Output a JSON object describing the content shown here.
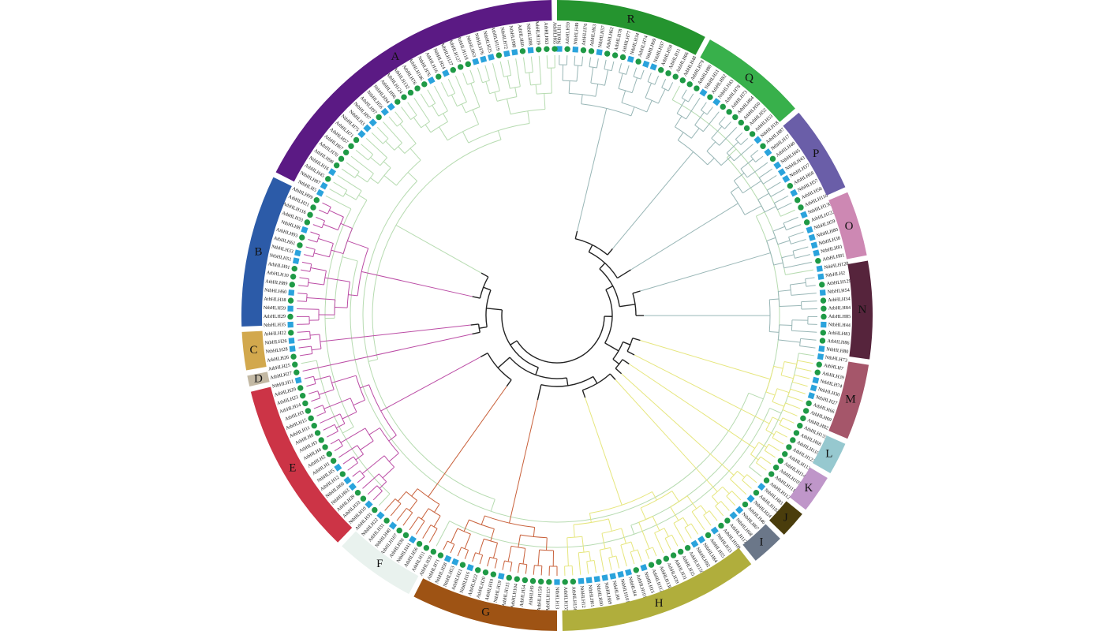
{
  "colors": {
    "marker_at": "#1f9a46",
    "marker_nb": "#2aa3dc",
    "core_branches": "#222222",
    "background": "#ffffff"
  },
  "marker_legend": {
    "circle": "AtbHLH",
    "square": "NtbHLH"
  },
  "groups": [
    {
      "letter": "A",
      "color": "#5b1a84",
      "branch_color": "#b6dbb0"
    },
    {
      "letter": "B",
      "color": "#2c5ba8",
      "branch_color": "#bb4ca5"
    },
    {
      "letter": "C",
      "color": "#d2a84d",
      "branch_color": "#bb4ca5"
    },
    {
      "letter": "D",
      "color": "#c3b9a4",
      "branch_color": "#bb4ca5"
    },
    {
      "letter": "E",
      "color": "#cc3446",
      "branch_color": "#bb4ca5"
    },
    {
      "letter": "F",
      "color": "#e9f2ee",
      "branch_color": "#c8603a"
    },
    {
      "letter": "G",
      "color": "#9e5314",
      "branch_color": "#c8603a"
    },
    {
      "letter": "H",
      "color": "#b0ae3c",
      "branch_color": "#e6e67e"
    },
    {
      "letter": "I",
      "color": "#6b7789",
      "branch_color": "#e6e67e"
    },
    {
      "letter": "J",
      "color": "#4a3d0c",
      "branch_color": "#e6e67e"
    },
    {
      "letter": "K",
      "color": "#bf96c9",
      "branch_color": "#e6e67e"
    },
    {
      "letter": "L",
      "color": "#96c8cf",
      "branch_color": "#e6e67e"
    },
    {
      "letter": "M",
      "color": "#a5566a",
      "branch_color": "#e6e67e"
    },
    {
      "letter": "N",
      "color": "#56243c",
      "branch_color": "#98b6b6"
    },
    {
      "letter": "O",
      "color": "#cd88b3",
      "branch_color": "#98b6b6"
    },
    {
      "letter": "P",
      "color": "#6a5ea8",
      "branch_color": "#98b6b6"
    },
    {
      "letter": "Q",
      "color": "#38b04b",
      "branch_color": "#98b6b6"
    },
    {
      "letter": "R",
      "color": "#25942f",
      "branch_color": "#98b6b6"
    }
  ],
  "leaves": [
    "NtbHLH1",
    "AtbHLH59",
    "NtbHLH49",
    "AtbHLH76",
    "AtbHLH63",
    "NtbHLH57",
    "AtbHLH62",
    "AtbHLH78",
    "AtbHLH77",
    "NtbHLH34",
    "AtbHLH74",
    "NtbHLH69",
    "NtbHLH37",
    "AtbHLH58",
    "AtbHLH11",
    "AtbHLH66",
    "AtbHLH48",
    "AtbHLH79",
    "AtbHLH80",
    "NtbHLH21",
    "AtbHLH82",
    "NtbHLH43",
    "AtbHLH78",
    "AtbHLH73",
    "AtbHLH64",
    "AtbHLH50",
    "AtbHLH52",
    "AtbHLH53",
    "NtbHLH18",
    "AtbHLH87",
    "NtbHLH17",
    "AtbHLH40",
    "NtbHLH45",
    "NtbHLH43",
    "NtbHLH37",
    "AtbHLH68",
    "NtbHLH57",
    "AtbHLH58",
    "AtbHLH110",
    "NtbHLH130",
    "AtbHLH122",
    "NtbHLH59",
    "NtbHLH80",
    "NtbHLH38",
    "NtbHLH81",
    "AtbHLH81",
    "NtbHLH128",
    "NtbHLH2",
    "AtbHLH129",
    "NtbHLH54",
    "AtbHLH34",
    "AtbHLH84",
    "AtbHLH85",
    "NtbHLH44",
    "AtbHLH83",
    "AtbHLH86",
    "NtbHLH80",
    "NtbHLH73",
    "AtbHLH7",
    "AtbHLH39",
    "NtbHLH74",
    "NtbHLH30",
    "NtbHLH27",
    "AtbHLH66",
    "AtbHLH69",
    "AtbHLH82",
    "AtbHLH133",
    "AtbHLH68",
    "AtbHLH110",
    "AtbHLH123",
    "AtbHLH113",
    "AtbHLH114",
    "AtbHLH105",
    "AtbHLH111",
    "AtbHLH112",
    "NtbHLH83",
    "AtbHLH102",
    "NtbHLH24",
    "AtbHLH46",
    "NtbHLH67",
    "NtbHLH68",
    "AtbHLH117",
    "AtbHLH109",
    "NtbHLH33",
    "AtbHLH55",
    "NtbHLH84",
    "NtbHLH92",
    "AtbHLH150",
    "AtbHLH35",
    "AtbHLH31",
    "AtbHLH39",
    "AtbHLH130",
    "AtbHLH112",
    "NtbHLH15",
    "AtbHLH101",
    "NtbHLH4",
    "NtbHLH101",
    "NtbHLH6",
    "NtbHLH89",
    "NtbHLH90",
    "NtbHLH61",
    "NtbHLH12",
    "AtbHLH156",
    "AtbHLH155",
    "NtbHLH13",
    "AtbHLH157",
    "AtbHLH158",
    "AtbHLH9",
    "AtbHLH54",
    "AtbHLH104",
    "AtbHLH115",
    "NtbHLH19",
    "AtbHLH10",
    "AtbHLH20",
    "AtbHLH22",
    "NtbHLH16",
    "AtbHLH21",
    "NtbHLH53",
    "NtbHLH58",
    "AtbHLH71",
    "AtbHLH39",
    "AtbHLH11",
    "AtbHLH56",
    "NtbHLH41",
    "AtbHLH30",
    "AtbHLH107",
    "NtbHLH40",
    "AtbHLH31",
    "NtbHLH22",
    "AtbHLH31",
    "NtbHLH10",
    "AtbHLH33",
    "AtbHLH39",
    "NtbHLH63",
    "NtbHLH60",
    "AtbHLH12",
    "NtbHLH5",
    "AtbHLH1",
    "AtbHLH2",
    "AtbHLH4",
    "AtbHLH3",
    "AtbHLH8",
    "AtbHLH11",
    "AtbHLH15",
    "AtbHLH3",
    "AtbHLH14",
    "AtbHLH23",
    "AtbHLH29",
    "NtbHLH11",
    "AtbHLH27",
    "AtbHLH25",
    "AtbHLH26",
    "NtbHLH28",
    "NtbHLH26",
    "AtbHLH22",
    "NtbHLH35",
    "AtbHLH29",
    "NtbHLH59",
    "AtbHLH38",
    "NtbHLH60",
    "AtbHLH89",
    "AtbHLH10",
    "AtbHLH91",
    "NtbHLH51",
    "NtbHLH33",
    "AtbHLH61",
    "AtbHLH93",
    "NtbHLH8",
    "AtbHLH33",
    "AtbHLH116",
    "AtbHLH21",
    "AtbHLH99",
    "NtbHLH5",
    "NtbHLH87",
    "AtbHLH45",
    "NtbHLH16",
    "AtbHLH98",
    "AtbHLH70",
    "AtbHLH67",
    "AtbHLH57",
    "AtbHLH71",
    "NtbHLH75",
    "NtbHLH3",
    "NtbHLH97",
    "AtbHLH97",
    "NtbHLH56",
    "NtbHLH94",
    "AtbHLH96",
    "AtbHLH124",
    "AtbHLH132",
    "AtbHLH76",
    "AtbHLH106",
    "NtbHLH76",
    "AtbHLH16",
    "NtbHLH24",
    "AtbHLH127",
    "AtbHLH127",
    "AtbHLH118",
    "NtbHLH63",
    "NtbHLH76",
    "NtbHLH25",
    "AtbHLH119",
    "NtbHLH72",
    "NtbHLH98",
    "AtbHLH60",
    "NtbHLH88",
    "AtbHLH119",
    "AtbHLH63",
    "AtbHLH65"
  ]
}
